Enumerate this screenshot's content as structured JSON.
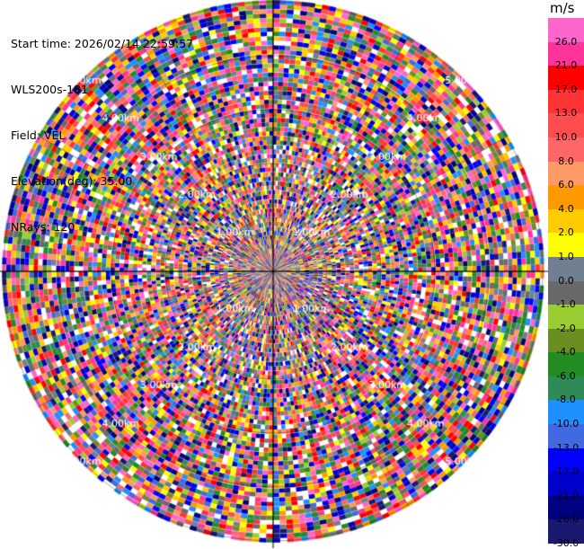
{
  "header": {
    "start_time": "Start time: 2026/02/14 22:59:57",
    "station": "WLS200s-181",
    "field": "Field: VEL",
    "elevation": "Elevation(deg): 35.00",
    "nrays": "NRays: 120"
  },
  "colorbar": {
    "unit": "m/s",
    "labels": [
      "26.0",
      "21.0",
      "17.0",
      "13.0",
      "10.0",
      "8.0",
      "6.0",
      "4.0",
      "2.0",
      "1.0",
      "0.0",
      "-1.0",
      "-2.0",
      "-4.0",
      "-6.0",
      "-8.0",
      "-10.0",
      "-13.0",
      "-17.0",
      "-21.0",
      "-26.0",
      "-30.0"
    ],
    "colors": [
      "#ff66cc",
      "#ff3399",
      "#ff0000",
      "#ff3333",
      "#ff4d4d",
      "#ff6666",
      "#ff9966",
      "#ff9900",
      "#ffcc00",
      "#ffff00",
      "#708090",
      "#696969",
      "#9acd32",
      "#6b8e23",
      "#228b22",
      "#2e8b57",
      "#1e90ff",
      "#4169e1",
      "#0000ff",
      "#0000cd",
      "#000080",
      "#191970"
    ]
  },
  "ppi": {
    "ring_labels": [
      "1.00km",
      "2.00km",
      "3.00km",
      "4.00km",
      "5.00km"
    ]
  }
}
